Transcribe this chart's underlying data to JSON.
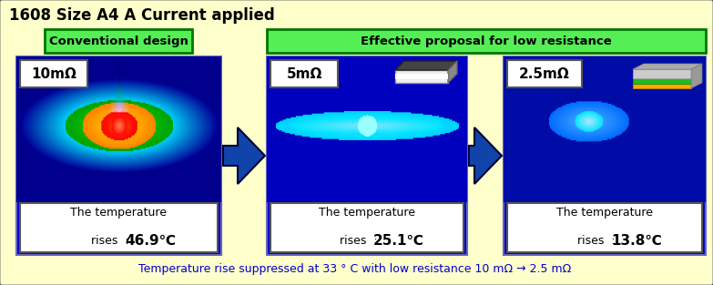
{
  "title": "1608 Size A4 A Current applied",
  "bg_color": "#FFFFCC",
  "border_color": "#333333",
  "label_conventional": "Conventional design",
  "label_effective": "Effective proposal for low resistance",
  "label_green_bg": "#55EE55",
  "label_green_border": "#007700",
  "panels": [
    {
      "resistance": "10mΩ",
      "temp_value": "46.9℃",
      "heat_level": 3
    },
    {
      "resistance": "5mΩ",
      "temp_value": "25.1℃",
      "heat_level": 2
    },
    {
      "resistance": "2.5mΩ",
      "temp_value": "13.8℃",
      "heat_level": 1
    }
  ],
  "bottom_text": "Temperature rise suppressed at 33 ° C with low resistance 10 mΩ → 2.5 mΩ",
  "bottom_text_color": "#0000CC",
  "arrow_color": "#1144AA",
  "arrow_border": "#000033",
  "panel_blue_dark": "#0000CC",
  "panel_blue_mid": "#1111EE",
  "temp_box_bg": "#FFFFFF",
  "res_box_bg": "#FFFFFF"
}
